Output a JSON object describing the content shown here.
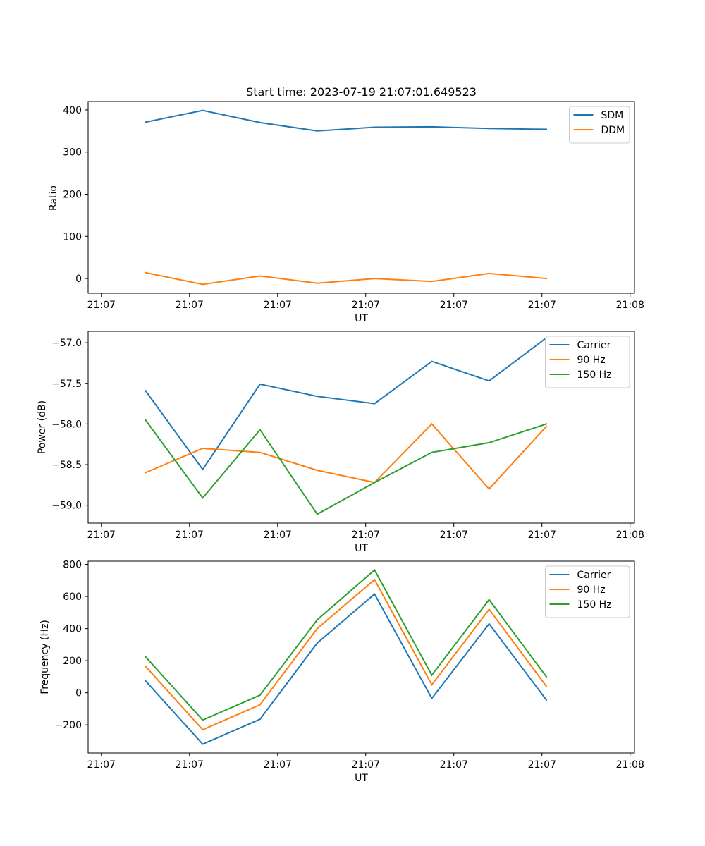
{
  "figure": {
    "title": "Start time: 2023-07-19 21:07:01.649523"
  },
  "colors": {
    "blue": "#1f77b4",
    "orange": "#ff7f0e",
    "green": "#2ca02c"
  },
  "chart_data": [
    {
      "type": "line",
      "title": "Start time: 2023-07-19 21:07:01.649523",
      "xlabel": "UT",
      "ylabel": "Ratio",
      "x_tick_labels": [
        "21:07",
        "21:07",
        "21:07",
        "21:07",
        "21:07",
        "21:07",
        "21:08"
      ],
      "x_tick_values": [
        0,
        1,
        2,
        3,
        4,
        5,
        6
      ],
      "xlim": [
        -0.15,
        6.05
      ],
      "x": [
        0.5,
        1.15,
        1.8,
        2.45,
        3.1,
        3.75,
        4.4,
        5.05
      ],
      "ylim": [
        -35,
        420
      ],
      "y_ticks": [
        0,
        100,
        200,
        300,
        400
      ],
      "y_tick_labels": [
        "0",
        "100",
        "200",
        "300",
        "400"
      ],
      "legend_position": "top-right",
      "series": [
        {
          "name": "SDM",
          "color": "#1f77b4",
          "values": [
            371,
            399,
            370,
            350,
            359,
            360,
            356,
            354
          ]
        },
        {
          "name": "DDM",
          "color": "#ff7f0e",
          "values": [
            14,
            -14,
            6,
            -11,
            0,
            -7,
            12,
            0
          ]
        }
      ]
    },
    {
      "type": "line",
      "title": "",
      "xlabel": "UT",
      "ylabel": "Power (dB)",
      "x_tick_labels": [
        "21:07",
        "21:07",
        "21:07",
        "21:07",
        "21:07",
        "21:07",
        "21:08"
      ],
      "x_tick_values": [
        0,
        1,
        2,
        3,
        4,
        5,
        6
      ],
      "xlim": [
        -0.15,
        6.05
      ],
      "x": [
        0.5,
        1.15,
        1.8,
        2.45,
        3.1,
        3.75,
        4.4,
        5.05
      ],
      "ylim": [
        -59.22,
        -56.86
      ],
      "y_ticks": [
        -59.0,
        -58.5,
        -58.0,
        -57.5,
        -57.0
      ],
      "y_tick_labels": [
        "−59.0",
        "−58.5",
        "−58.0",
        "−57.5",
        "−57.0"
      ],
      "legend_position": "top-right",
      "series": [
        {
          "name": "Carrier",
          "color": "#1f77b4",
          "values": [
            -57.59,
            -58.56,
            -57.51,
            -57.66,
            -57.75,
            -57.23,
            -57.47,
            -56.94
          ]
        },
        {
          "name": "90 Hz",
          "color": "#ff7f0e",
          "values": [
            -58.6,
            -58.3,
            -58.35,
            -58.57,
            -58.72,
            -58.0,
            -58.8,
            -58.03
          ]
        },
        {
          "name": "150 Hz",
          "color": "#2ca02c",
          "values": [
            -57.95,
            -58.91,
            -58.07,
            -59.11,
            -58.72,
            -58.35,
            -58.23,
            -58.0
          ]
        }
      ]
    },
    {
      "type": "line",
      "title": "",
      "xlabel": "UT",
      "ylabel": "Frequency (Hz)",
      "x_tick_labels": [
        "21:07",
        "21:07",
        "21:07",
        "21:07",
        "21:07",
        "21:07",
        "21:08"
      ],
      "x_tick_values": [
        0,
        1,
        2,
        3,
        4,
        5,
        6
      ],
      "xlim": [
        -0.15,
        6.05
      ],
      "x": [
        0.5,
        1.15,
        1.8,
        2.45,
        3.1,
        3.75,
        4.4,
        5.05
      ],
      "ylim": [
        -375,
        820
      ],
      "y_ticks": [
        -200,
        0,
        200,
        400,
        600,
        800
      ],
      "y_tick_labels": [
        "−200",
        "0",
        "200",
        "400",
        "600",
        "800"
      ],
      "legend_position": "top-right",
      "series": [
        {
          "name": "Carrier",
          "color": "#1f77b4",
          "values": [
            75,
            -320,
            -165,
            310,
            615,
            -35,
            430,
            -45
          ]
        },
        {
          "name": "90 Hz",
          "color": "#ff7f0e",
          "values": [
            165,
            -230,
            -75,
            400,
            705,
            50,
            520,
            40
          ]
        },
        {
          "name": "150 Hz",
          "color": "#2ca02c",
          "values": [
            225,
            -170,
            -15,
            455,
            765,
            110,
            580,
            100
          ]
        }
      ]
    }
  ]
}
